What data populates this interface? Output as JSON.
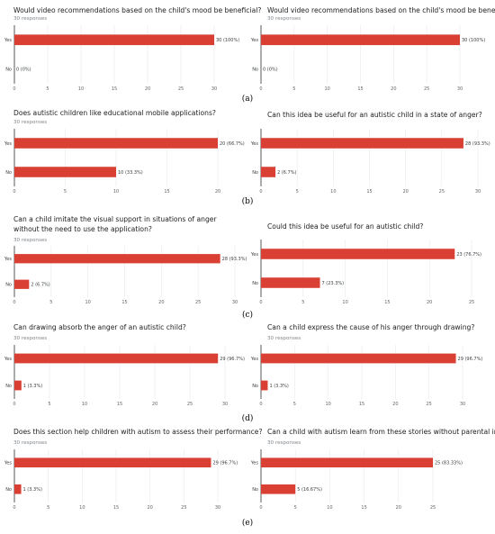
{
  "bar_color": "#d93f32",
  "panel_labels": [
    "(a)",
    "(b)",
    "(c)",
    "(d)",
    "(e)"
  ],
  "chart_data": [
    {
      "type": "bar",
      "orientation": "horizontal",
      "title": "Would video recommendations based on the child's mood be beneficial?",
      "subtitle": "30 responses",
      "categories": [
        "Yes",
        "No"
      ],
      "values": [
        30,
        0
      ],
      "data_labels": [
        "30 (100%)",
        "0 (0%)"
      ],
      "xticks": [
        0,
        5,
        10,
        15,
        20,
        25,
        30
      ],
      "xlim": [
        0,
        30
      ],
      "xlabel": "",
      "ylabel": "",
      "grid": true
    },
    {
      "type": "bar",
      "orientation": "horizontal",
      "title": "Would video recommendations based on the child's mood be beneficial?",
      "subtitle": "30 responses",
      "categories": [
        "Yes",
        "No"
      ],
      "values": [
        30,
        0
      ],
      "data_labels": [
        "30 (100%)",
        "0 (0%)"
      ],
      "xticks": [
        0,
        5,
        10,
        15,
        20,
        25,
        30
      ],
      "xlim": [
        0,
        30
      ],
      "xlabel": "",
      "ylabel": "",
      "grid": true
    },
    {
      "type": "bar",
      "orientation": "horizontal",
      "title": "Does autistic children like educational mobile applications?",
      "subtitle": "30 responses",
      "categories": [
        "Yes",
        "No"
      ],
      "values": [
        20,
        10
      ],
      "data_labels": [
        "20 (66.7%)",
        "10 (33.3%)"
      ],
      "xticks": [
        0,
        5,
        10,
        15,
        20
      ],
      "xlim": [
        0,
        20
      ],
      "xlabel": "",
      "ylabel": "",
      "grid": true
    },
    {
      "type": "bar",
      "orientation": "horizontal",
      "title": "Can this idea be useful for an autistic child in a state  of anger?",
      "subtitle": "",
      "categories": [
        "Yes",
        "No"
      ],
      "values": [
        28,
        2
      ],
      "data_labels": [
        "28 (93.3%)",
        "2 (6.7%)"
      ],
      "xticks": [
        0,
        5,
        10,
        15,
        20,
        25,
        30
      ],
      "xlim": [
        0,
        30
      ],
      "xlabel": "",
      "ylabel": "",
      "grid": true
    },
    {
      "type": "bar",
      "orientation": "horizontal",
      "title": "Can a child imitate the visual support in situations of anger without the need to use the application?",
      "subtitle": "30 responses",
      "categories": [
        "Yes",
        "No"
      ],
      "values": [
        28,
        2
      ],
      "data_labels": [
        "28 (93.3%)",
        "2 (6.7%)"
      ],
      "xticks": [
        0,
        5,
        10,
        15,
        20,
        25,
        30
      ],
      "xlim": [
        0,
        30
      ],
      "xlabel": "",
      "ylabel": "",
      "grid": true
    },
    {
      "type": "bar",
      "orientation": "horizontal",
      "title": "Could this idea be useful for an autistic child?",
      "subtitle": "",
      "categories": [
        "Yes",
        "No"
      ],
      "values": [
        23,
        7
      ],
      "data_labels": [
        "23 (76.7%)",
        "7 (23.3%)"
      ],
      "xticks": [
        0,
        5,
        10,
        15,
        20,
        25
      ],
      "xlim": [
        0,
        25
      ],
      "xlabel": "",
      "ylabel": "",
      "grid": true
    },
    {
      "type": "bar",
      "orientation": "horizontal",
      "title": "Can drawing absorb the anger of an autistic child?",
      "subtitle": "30 responses",
      "categories": [
        "Yes",
        "No"
      ],
      "values": [
        29,
        1
      ],
      "data_labels": [
        "29 (96.7%)",
        "1 (3.3%)"
      ],
      "xticks": [
        0,
        5,
        10,
        15,
        20,
        25,
        30
      ],
      "xlim": [
        0,
        30
      ],
      "xlabel": "",
      "ylabel": "",
      "grid": true
    },
    {
      "type": "bar",
      "orientation": "horizontal",
      "title": "Can a child express the cause of his anger through drawing?",
      "subtitle": "30 responses",
      "categories": [
        "Yes",
        "No"
      ],
      "values": [
        29,
        1
      ],
      "data_labels": [
        "29 (96.7%)",
        "1 (3.3%)"
      ],
      "xticks": [
        0,
        5,
        10,
        15,
        20,
        25,
        30
      ],
      "xlim": [
        0,
        30
      ],
      "xlabel": "",
      "ylabel": "",
      "grid": true
    },
    {
      "type": "bar",
      "orientation": "horizontal",
      "title": "Does this section help children with autism to assess their performance?",
      "subtitle": "30 responses",
      "categories": [
        "Yes",
        "No"
      ],
      "values": [
        29,
        1
      ],
      "data_labels": [
        "29 (96.7%)",
        "1 (3.3%)"
      ],
      "xticks": [
        0,
        5,
        10,
        15,
        20,
        25,
        30
      ],
      "xlim": [
        0,
        30
      ],
      "xlabel": "",
      "ylabel": "",
      "grid": true
    },
    {
      "type": "bar",
      "orientation": "horizontal",
      "title": "Can a child with autism learn from these stories without parental involvement?",
      "subtitle": "30 responses",
      "categories": [
        "Yes",
        "No"
      ],
      "values": [
        25,
        5
      ],
      "data_labels": [
        "25 (83.33%)",
        "5 (16.67%)"
      ],
      "xticks": [
        0,
        5,
        10,
        15,
        20,
        25
      ],
      "xlim": [
        0,
        25
      ],
      "xlabel": "",
      "ylabel": "",
      "grid": true
    }
  ]
}
